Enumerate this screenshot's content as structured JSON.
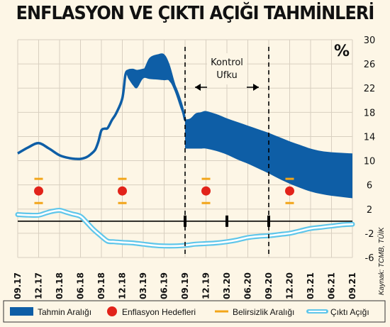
{
  "chart_data": {
    "type": "area",
    "title": "ENFLASYON VE ÇIKTI AÇIĞI TAHMİNLERİ",
    "unit_label": "%",
    "ylim": [
      -6,
      30
    ],
    "y_ticks": [
      -6,
      -2,
      2,
      6,
      10,
      14,
      18,
      22,
      26,
      30
    ],
    "x_ticks": [
      "09.17",
      "12.17",
      "03.18",
      "06.18",
      "09.18",
      "12.18",
      "03.19",
      "06.19",
      "09.19",
      "12.19",
      "03.20",
      "06.20",
      "09.20",
      "12.20",
      "03.21",
      "06.21",
      "09.21"
    ],
    "annotation": {
      "line1": "Kontrol",
      "line2": "Ufku",
      "from": "09.19",
      "to": "09.20"
    },
    "inflation_actual": {
      "name": "Tahmin Aralığı",
      "x": [
        0,
        0.5,
        1,
        1.5,
        2,
        2.5,
        2.8,
        3,
        3.3,
        3.5,
        3.7,
        3.85,
        4,
        4.15,
        4.3,
        4.5,
        4.7,
        5,
        5.15,
        5.3,
        5.5,
        5.7,
        6,
        6.3,
        6.7,
        7,
        7.25,
        7.5,
        7.8,
        8
      ],
      "y": [
        11.2,
        12.2,
        12.9,
        12.0,
        10.9,
        10.4,
        10.3,
        10.3,
        10.6,
        11.1,
        11.8,
        13.1,
        15.0,
        15.3,
        15.4,
        16.7,
        17.8,
        20.3,
        24.2,
        24.9,
        25.0,
        24.8,
        25.0,
        25.2,
        25.0,
        25.3,
        23.5,
        22.3,
        19.5,
        16.7
      ]
    },
    "forecast_band": {
      "name": "Tahmin Aralığı",
      "x": [
        8,
        8.25,
        8.5,
        8.75,
        9,
        9.5,
        10,
        10.5,
        11,
        11.5,
        12,
        12.5,
        13,
        13.5,
        14,
        14.5,
        15,
        15.5,
        16
      ],
      "upper": [
        16.8,
        17.0,
        17.8,
        18.0,
        18.2,
        17.7,
        17.0,
        16.4,
        15.8,
        15.2,
        14.6,
        13.9,
        13.2,
        12.6,
        12.0,
        11.6,
        11.4,
        11.3,
        11.2
      ],
      "lower": [
        12.0,
        12.0,
        12.0,
        12.0,
        12.0,
        11.6,
        11.0,
        10.2,
        9.5,
        8.7,
        7.9,
        7.0,
        6.2,
        5.5,
        4.9,
        4.5,
        4.2,
        4.0,
        3.8
      ]
    },
    "band_2018": {
      "x": [
        5,
        5.15,
        5.3,
        5.5,
        5.7,
        6,
        6.3,
        6.7,
        7,
        7.25,
        7.5,
        7.8,
        8
      ],
      "upper": [
        20.3,
        24.2,
        24.9,
        25.0,
        24.8,
        25.0,
        27.0,
        27.6,
        27.6,
        26.0,
        23.0,
        19.5,
        16.7
      ],
      "lower": [
        20.3,
        24.2,
        23.5,
        22.5,
        22.0,
        23.6,
        23.5,
        23.4,
        23.3,
        23.2,
        21.5,
        18.5,
        16.7
      ]
    },
    "inflation_targets": {
      "name": "Enflasyon Hedefleri",
      "x": [
        1,
        5,
        9,
        13
      ],
      "y": [
        5,
        5,
        5,
        5
      ]
    },
    "uncertainty_band": {
      "name": "Belirsizlik Aralığı",
      "x": [
        1,
        5,
        9,
        13
      ],
      "upper": [
        7,
        7,
        7,
        7
      ],
      "lower": [
        3,
        3,
        3,
        3
      ]
    },
    "output_gap": {
      "name": "Çıktı Açığı",
      "x": [
        0,
        0.5,
        1,
        1.3,
        1.6,
        2,
        2.3,
        2.6,
        3,
        3.3,
        3.6,
        4,
        4.3,
        4.6,
        5,
        5.5,
        6,
        6.5,
        7,
        7.5,
        8,
        8.5,
        9,
        9.5,
        10,
        10.5,
        11,
        11.5,
        12,
        12.5,
        13,
        13.5,
        14,
        14.5,
        15,
        15.5,
        16
      ],
      "y": [
        1.1,
        1.0,
        1.0,
        1.3,
        1.6,
        1.8,
        1.5,
        1.2,
        0.8,
        -0.2,
        -1.3,
        -2.5,
        -3.3,
        -3.4,
        -3.5,
        -3.6,
        -3.8,
        -4.0,
        -4.1,
        -4.1,
        -4.0,
        -3.8,
        -3.7,
        -3.6,
        -3.4,
        -3.1,
        -2.7,
        -2.5,
        -2.4,
        -2.2,
        -2.0,
        -1.6,
        -1.2,
        -1.0,
        -0.8,
        -0.6,
        -0.5
      ]
    },
    "legend": [
      {
        "label": "Tahmin Aralığı"
      },
      {
        "label": "Enflasyon Hedefleri"
      },
      {
        "label": "Belirsizlik Aralığı"
      },
      {
        "label": "Çıktı Açığı"
      }
    ],
    "source": "Kaynak: TCMB, TÜİK",
    "colors": {
      "band": "#0e5ea6",
      "target": "#e2231a",
      "uncertainty": "#f2a51a",
      "gap_outer": "#5fc6ea",
      "gap_inner": "#ffffff",
      "grid": "#d8cfc0",
      "axis": "#000000",
      "background": "#fdf6e6"
    }
  }
}
